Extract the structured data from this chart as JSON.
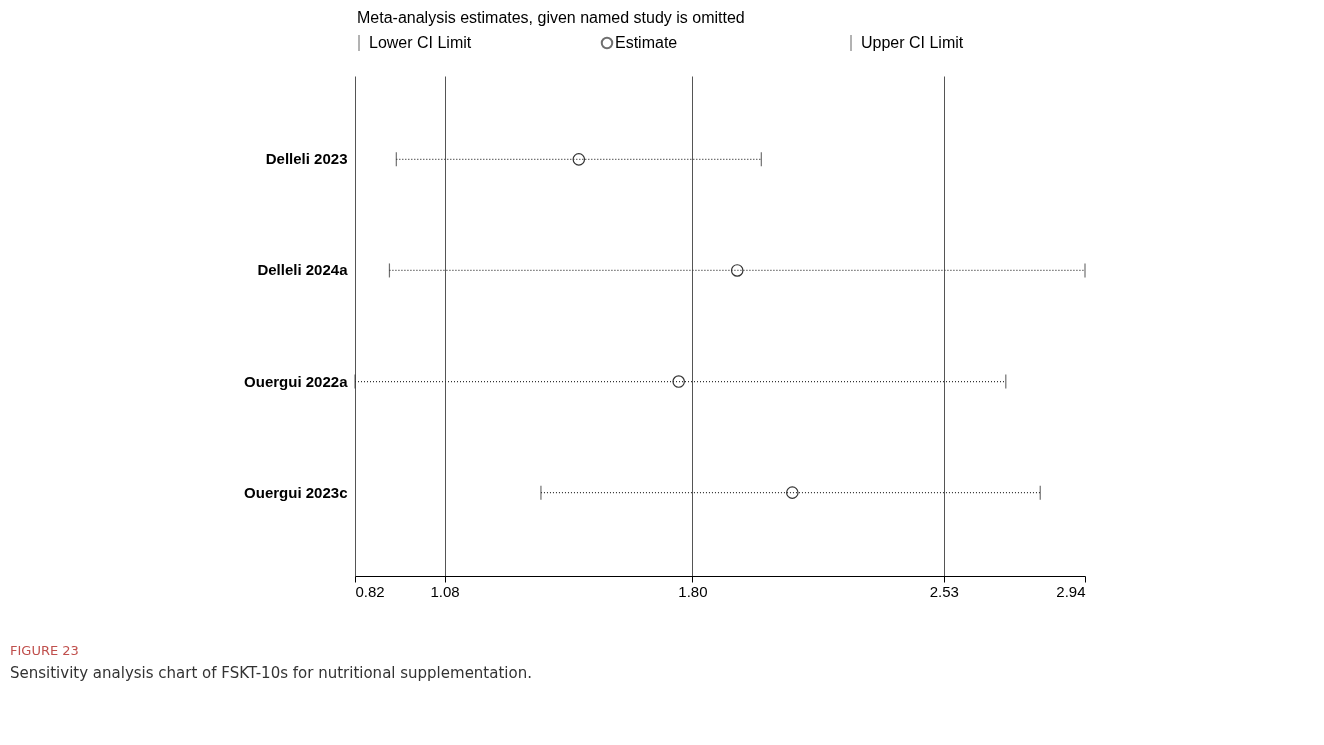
{
  "chart_data": {
    "type": "scatter",
    "orientation": "horizontal",
    "legend_title": "Meta-analysis estimates, given named study is omitted",
    "categories": [
      "Delleli 2023",
      "Delleli 2024a",
      "Ouergui 2022a",
      "Ouergui 2023c"
    ],
    "series": [
      {
        "name": "Estimate",
        "color": "#333333",
        "values": [
          1.47,
          1.93,
          1.76,
          2.09
        ],
        "errors": [
          [
            0.94,
            2.0
          ],
          [
            0.92,
            2.94
          ],
          [
            0.82,
            2.71
          ],
          [
            1.36,
            2.81
          ]
        ]
      }
    ],
    "xlim": [
      0.82,
      2.94
    ],
    "xticks": [
      0.82,
      1.08,
      {
        "value": 1.8,
        "label": "1.80"
      },
      2.53,
      2.94
    ],
    "grid": "x",
    "legend": "top",
    "marker": "circle",
    "line_style": "dotted",
    "annotations": [
      "Lower CI Limit",
      "Upper CI Limit",
      "FIGURE 23",
      "Sensitivity analysis chart of FSKT-10s for nutritional supplementation."
    ]
  }
}
